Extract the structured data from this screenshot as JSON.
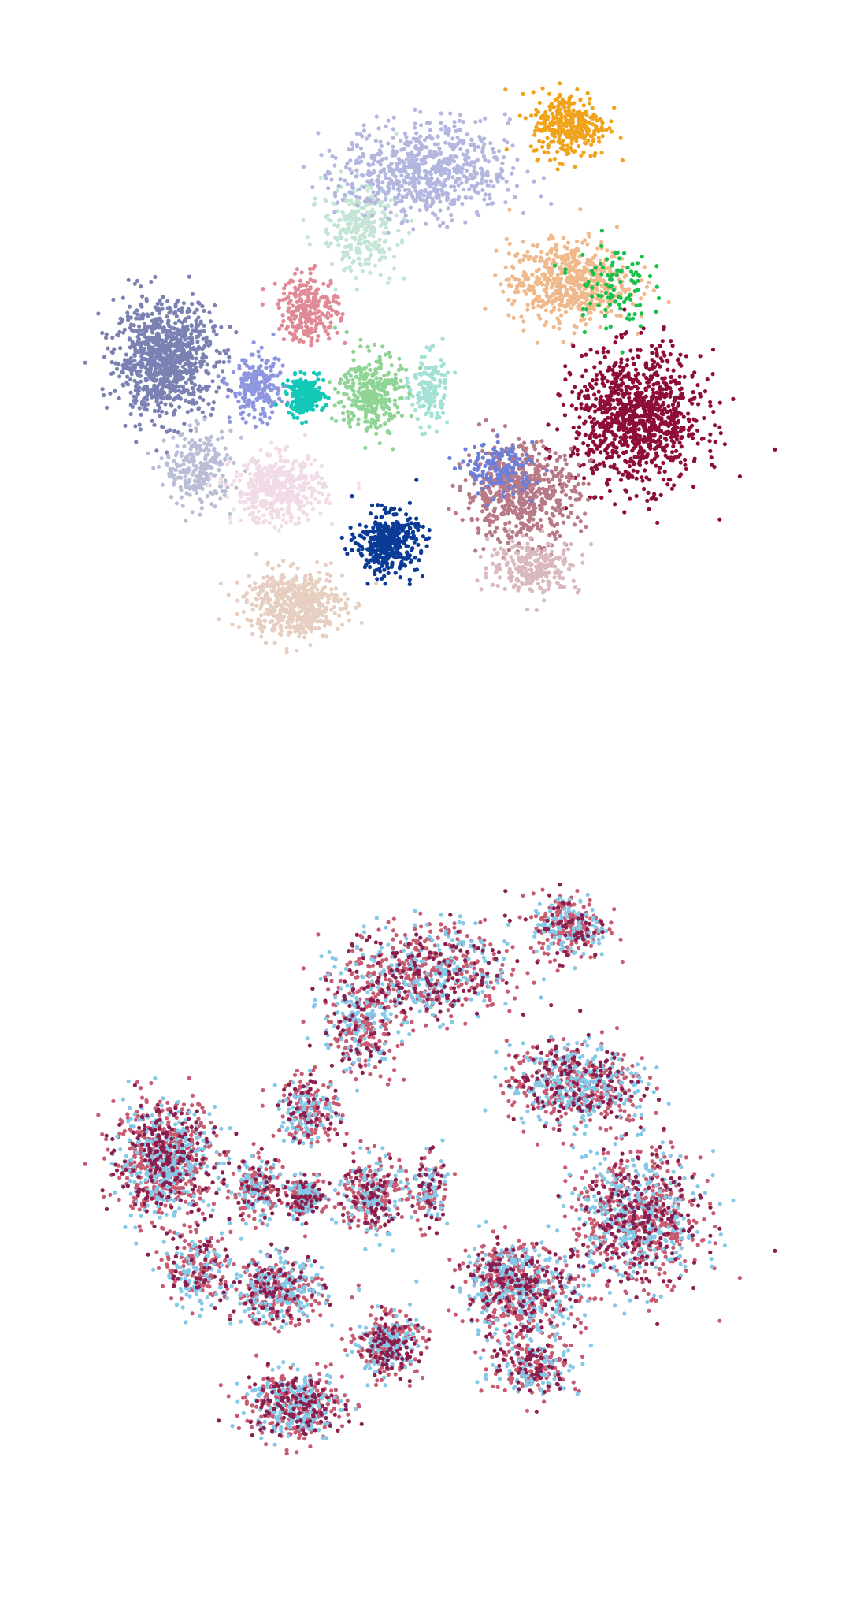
{
  "chart_data": [
    {
      "type": "scatter",
      "title": "",
      "xlabel": "",
      "ylabel": "",
      "axes_visible": false,
      "grid": false,
      "legend": "none",
      "colored_by": "cluster",
      "xlim": [
        -8,
        12
      ],
      "ylim": [
        -10,
        10
      ],
      "series": [
        {
          "color": "#7b82b3",
          "center": [
            -5.6,
            1.4
          ],
          "spread": [
            1.3,
            1.5
          ],
          "points": 950
        },
        {
          "color": "#b9bed6",
          "center": [
            -4.6,
            -1.9
          ],
          "spread": [
            0.9,
            1.0
          ],
          "points": 250
        },
        {
          "color": "#8e96df",
          "center": [
            -2.9,
            0.5
          ],
          "spread": [
            0.7,
            0.9
          ],
          "points": 220
        },
        {
          "color": "#e08a96",
          "center": [
            -1.4,
            2.9
          ],
          "spread": [
            0.8,
            0.9
          ],
          "points": 250
        },
        {
          "color": "#12c9b8",
          "center": [
            -1.5,
            0.3
          ],
          "spread": [
            0.5,
            0.5
          ],
          "points": 220
        },
        {
          "color": "#8fd495",
          "center": [
            0.4,
            0.4
          ],
          "spread": [
            0.8,
            1.1
          ],
          "points": 320
        },
        {
          "color": "#a3e0d6",
          "center": [
            2.1,
            0.5
          ],
          "spread": [
            0.5,
            1.0
          ],
          "points": 150
        },
        {
          "color": "#c4e4d6",
          "center": [
            0.1,
            5.3
          ],
          "spread": [
            1.0,
            1.2
          ],
          "points": 300
        },
        {
          "color": "#b3b7e0",
          "center": [
            2.0,
            7.0
          ],
          "spread": [
            2.2,
            1.3
          ],
          "points": 700
        },
        {
          "color": "#f0a31b",
          "center": [
            6.2,
            8.4
          ],
          "spread": [
            1.0,
            0.9
          ],
          "points": 320
        },
        {
          "color": "#f0b98c",
          "center": [
            6.2,
            3.7
          ],
          "spread": [
            1.6,
            1.1
          ],
          "points": 600
        },
        {
          "color": "#18c24a",
          "center": [
            7.4,
            3.6
          ],
          "spread": [
            1.0,
            1.2
          ],
          "points": 100
        },
        {
          "color": "#8e0c3a",
          "center": [
            8.2,
            -0.4
          ],
          "spread": [
            1.7,
            1.8
          ],
          "points": 1000
        },
        {
          "color": "#b87a86",
          "center": [
            4.8,
            -2.6
          ],
          "spread": [
            1.5,
            1.3
          ],
          "points": 600
        },
        {
          "color": "#d9b8be",
          "center": [
            5.2,
            -4.8
          ],
          "spread": [
            1.2,
            0.7
          ],
          "points": 250
        },
        {
          "color": "#6d7fd6",
          "center": [
            4.2,
            -1.9
          ],
          "spread": [
            0.9,
            0.7
          ],
          "points": 150
        },
        {
          "color": "#f1dbe6",
          "center": [
            -2.3,
            -2.5
          ],
          "spread": [
            1.2,
            0.9
          ],
          "points": 450
        },
        {
          "color": "#e6cfc0",
          "center": [
            -1.8,
            -5.9
          ],
          "spread": [
            1.3,
            0.9
          ],
          "points": 550
        },
        {
          "color": "#0a3b97",
          "center": [
            0.9,
            -4.1
          ],
          "spread": [
            0.8,
            0.8
          ],
          "points": 400
        }
      ]
    },
    {
      "type": "scatter",
      "title": "",
      "xlabel": "",
      "ylabel": "",
      "axes_visible": false,
      "grid": false,
      "legend": "none",
      "colored_by": "group",
      "xlim": [
        -8,
        12
      ],
      "ylim": [
        -10,
        10
      ],
      "series": [
        {
          "color": "#c75b71",
          "share": 0.45
        },
        {
          "color": "#86c8e8",
          "share": 0.35
        },
        {
          "color": "#8a1f4f",
          "share": 0.2
        }
      ]
    }
  ]
}
